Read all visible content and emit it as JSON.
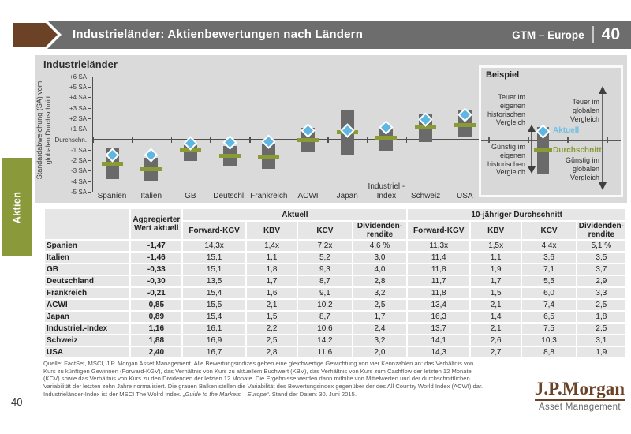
{
  "header": {
    "title": "Industrieländer: Aktienbewertungen nach Ländern",
    "edition": "GTM – Europe",
    "page": "40"
  },
  "sidebar": {
    "tab": "Aktien"
  },
  "colors": {
    "header_gray": "#6d6d6d",
    "accent_brown": "#6b4226",
    "accent_olive": "#8a9a35",
    "current_blue": "#5db7e2",
    "bar_gray": "#6a6a6a",
    "panel_bg": "#dadada",
    "axis": "#4f4f4f"
  },
  "chart_data": {
    "type": "bar",
    "title": "Industrieländer",
    "ylabel": "Standardabweichung (SA) vom\nglobalen Durchschnitt",
    "ylim": [
      -5,
      6
    ],
    "yticks": [
      {
        "label": "+6 SA",
        "value": 6
      },
      {
        "label": "+5 SA",
        "value": 5
      },
      {
        "label": "+4 SA",
        "value": 4
      },
      {
        "label": "+3 SA",
        "value": 3
      },
      {
        "label": "+2 SA",
        "value": 2
      },
      {
        "label": "+1 SA",
        "value": 1
      },
      {
        "label": "Durchschn.",
        "value": 0
      },
      {
        "label": "-1 SA",
        "value": -1
      },
      {
        "label": "-2 SA",
        "value": -2
      },
      {
        "label": "-3 SA",
        "value": -3
      },
      {
        "label": "-4 SA",
        "value": -4
      },
      {
        "label": "-5 SA",
        "value": -5
      }
    ],
    "categories": [
      "Spanien",
      "Italien",
      "GB",
      "Deutschl.",
      "Frankreich",
      "ACWI",
      "Japan",
      "Industriel.-\nIndex",
      "Schweiz",
      "USA"
    ],
    "series": [
      {
        "name": "Variabilität (grauer Balken)",
        "type": "range-bar",
        "top": [
          -0.85,
          -1.7,
          -0.55,
          -0.6,
          -0.45,
          1.15,
          2.75,
          1.15,
          2.45,
          2.8
        ],
        "bottom": [
          -3.75,
          -4.0,
          -2.0,
          -2.5,
          -2.8,
          -1.15,
          -1.4,
          -1.05,
          -0.25,
          0.2
        ]
      },
      {
        "name": "Durchschnitt",
        "type": "tick-marker",
        "values": [
          -2.3,
          -2.8,
          -1.0,
          -1.55,
          -1.6,
          0.0,
          0.7,
          0.2,
          1.25,
          1.4
        ]
      },
      {
        "name": "Aktuell",
        "type": "diamond-marker",
        "values": [
          -1.47,
          -1.46,
          -0.33,
          -0.3,
          -0.21,
          0.85,
          0.89,
          1.16,
          1.88,
          2.4
        ]
      }
    ]
  },
  "legend_box": {
    "title": "Beispiel",
    "expensive_own": "Teuer im\neigenen\nhistorischen\nVergleich",
    "cheap_own": "Günstig im\neigenen\nhistorischen\nVergleich",
    "expensive_global": "Teuer im\nglobalen\nVergleich",
    "cheap_global": "Günstig im\nglobalen\nVergleich",
    "aktuell_label": "Aktuell",
    "durchschnitt_label": "Durchschnitt"
  },
  "table": {
    "agg_header": "Aggregierter\nWert aktuell",
    "group_aktuell": "Aktuell",
    "group_avg10": "10-jähriger Durchschnitt",
    "col_headers_row2": [
      "Forward-KGV",
      "KBV",
      "KCV",
      "Dividenden-\nrendite",
      "Forward-KGV",
      "KBV",
      "KCV",
      "Dividenden-\nrendite"
    ],
    "rows": [
      {
        "name": "Spanien",
        "agg": "-1,47",
        "values": [
          "14,3x",
          "1,4x",
          "7,2x",
          "4,6 %",
          "11,3x",
          "1,5x",
          "4,4x",
          "5,1 %"
        ]
      },
      {
        "name": "Italien",
        "agg": "-1,46",
        "values": [
          "15,1",
          "1,1",
          "5,2",
          "3,0",
          "11,4",
          "1,1",
          "3,6",
          "3,5"
        ]
      },
      {
        "name": "GB",
        "agg": "-0,33",
        "values": [
          "15,1",
          "1,8",
          "9,3",
          "4,0",
          "11,8",
          "1,9",
          "7,1",
          "3,7"
        ]
      },
      {
        "name": "Deutschland",
        "agg": "-0,30",
        "values": [
          "13,5",
          "1,7",
          "8,7",
          "2,8",
          "11,7",
          "1,7",
          "5,5",
          "2,9"
        ]
      },
      {
        "name": "Frankreich",
        "agg": "-0,21",
        "values": [
          "15,4",
          "1,6",
          "9,1",
          "3,2",
          "11,8",
          "1,5",
          "6,0",
          "3,3"
        ]
      },
      {
        "name": "ACWI",
        "agg": "0,85",
        "values": [
          "15,5",
          "2,1",
          "10,2",
          "2,5",
          "13,4",
          "2,1",
          "7,4",
          "2,5"
        ]
      },
      {
        "name": "Japan",
        "agg": "0,89",
        "values": [
          "15,4",
          "1,5",
          "8,7",
          "1,7",
          "16,3",
          "1,4",
          "6,5",
          "1,8"
        ]
      },
      {
        "name": "Industriel.-Index",
        "agg": "1,16",
        "values": [
          "16,1",
          "2,2",
          "10,6",
          "2,4",
          "13,7",
          "2,1",
          "7,5",
          "2,5"
        ]
      },
      {
        "name": "Schweiz",
        "agg": "1,88",
        "values": [
          "16,9",
          "2,5",
          "14,2",
          "3,2",
          "14,1",
          "2,6",
          "10,3",
          "3,1"
        ]
      },
      {
        "name": "USA",
        "agg": "2,40",
        "values": [
          "16,7",
          "2,8",
          "11,6",
          "2,0",
          "14,3",
          "2,7",
          "8,8",
          "1,9"
        ]
      }
    ]
  },
  "footer": {
    "source_lines": "Quelle: FactSet, MSCI, J.P. Morgan Asset Management. Alle Bewertungsindizes geben eine gleichwertige Gewichtung von vier Kennzahlen an: das Verhältnis von\nKurs zu künftigen Gewinnen (Forward-KGV), das Verhältnis von Kurs zu aktuellem Buchwert (KBV), das Verhältnis von Kurs zum Cashflow der letzten 12 Monate\n(KCV) sowie das Verhältnis von Kurs zu den Dividenden der letzten 12 Monate. Die Ergebnisse werden dann mithilfe von Mittelwerten und der durchschnittlichen\nVariabilität der letzten zehn Jahre normalisiert. Die grauen Balken stellen die Variabilität des Bewertungsindex gegenüber der des All Country World Index (ACWI) dar.\nIndustrieländer-Index ist der MSCI The Wolrd Index. ",
    "quote_italic": "„Guide to the Markets – Europe“",
    "after_quote": ". Stand der Daten: 30. Juni 2015.",
    "page_number": "40"
  },
  "logo": {
    "brand": "J.P.Morgan",
    "sub": "Asset Management"
  }
}
